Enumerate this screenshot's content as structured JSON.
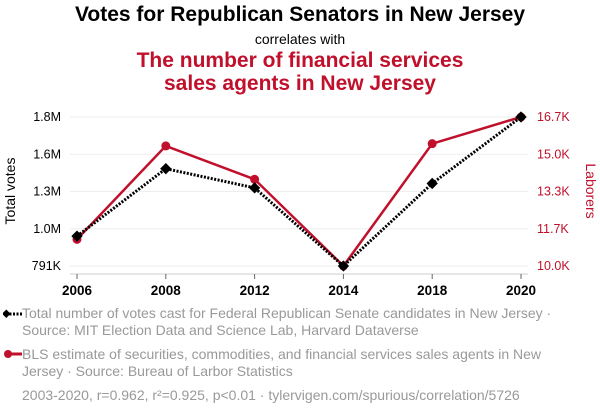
{
  "header": {
    "title": "Votes for Republican Senators in New Jersey",
    "subtitle": "correlates with",
    "title2_line1": "The number of financial services",
    "title2_line2": "sales agents in New Jersey"
  },
  "colors": {
    "series1": "#000000",
    "series2": "#c0102b",
    "muted": "#999999",
    "grid": "#eeeeee"
  },
  "legend": {
    "series1": "Total number of votes cast for Federal Republican Senate candidates in New Jersey · Source: MIT Election Data and Science Lab, Harvard Dataverse",
    "series2": "BLS estimate of securities, commodities, and financial services sales agents in New Jersey · Source: Bureau of Larbor Statistics"
  },
  "footer": "2003-2020, r=0.962, r²=0.925, p<0.01 · tylervigen.com/spurious/correlation/5726",
  "chart_data": {
    "type": "line",
    "title": "Votes for Republican Senators in New Jersey correlates with The number of financial services sales agents in New Jersey",
    "categories": [
      "2006",
      "2008",
      "2012",
      "2014",
      "2018",
      "2020"
    ],
    "y_left": {
      "label": "Total votes",
      "range": [
        791000,
        1800000
      ],
      "tick_labels": [
        "791K",
        "1.0M",
        "1.3M",
        "1.6M",
        "1.8M"
      ]
    },
    "y_right": {
      "label": "Laborers",
      "range": [
        10000,
        16700
      ],
      "tick_labels": [
        "10.0K",
        "11.7K",
        "13.3K",
        "15.0K",
        "16.7K"
      ]
    },
    "grid": true,
    "series": [
      {
        "name": "Total number of votes cast for Federal Republican Senate candidates in New Jersey",
        "axis": "left",
        "style": "dotted-diamond",
        "values": [
          993000,
          1450000,
          1320000,
          791000,
          1350000,
          1800000
        ]
      },
      {
        "name": "BLS estimate of securities, commodities, and financial services sales agents in New Jersey",
        "axis": "right",
        "style": "solid-circle",
        "values": [
          11200,
          15400,
          13900,
          10000,
          15500,
          16700
        ]
      }
    ]
  }
}
